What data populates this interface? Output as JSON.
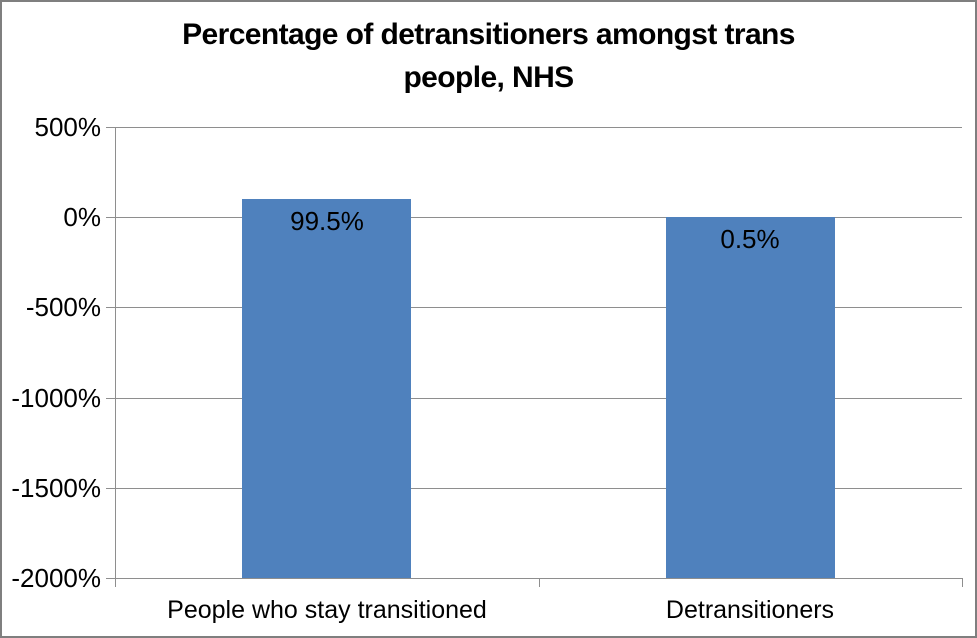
{
  "window": {
    "background_color": "#ffffff",
    "border_color": "#7f7f7f"
  },
  "title": {
    "text": "Percentage of detransitioners amongst trans people, NHS",
    "lines": [
      "Percentage of detransitioners amongst trans",
      "people, NHS"
    ]
  },
  "chart_data": {
    "type": "bar",
    "title": "Percentage of detransitioners amongst trans people, NHS",
    "categories": [
      "People who stay transitioned",
      "Detransitioners"
    ],
    "values": [
      99.5,
      0.5
    ],
    "data_labels": [
      "99.5%",
      "0.5%"
    ],
    "data_label_position": "inside-end",
    "ytick_values": [
      500,
      0,
      -500,
      -1000,
      -1500,
      -2000
    ],
    "ytick_labels": [
      "500%",
      "0%",
      "-500%",
      "-1000%",
      "-1500%",
      "-2000%"
    ],
    "ylim": [
      -2000,
      500
    ],
    "xlabel": "",
    "ylabel": "",
    "grid": true,
    "legend": false,
    "bars_drawn_from": -2000,
    "bar_color": "#4f81bd",
    "gridline_color": "#8e8e8e",
    "axis_color": "#8e8e8e",
    "text_color": "#000000"
  }
}
